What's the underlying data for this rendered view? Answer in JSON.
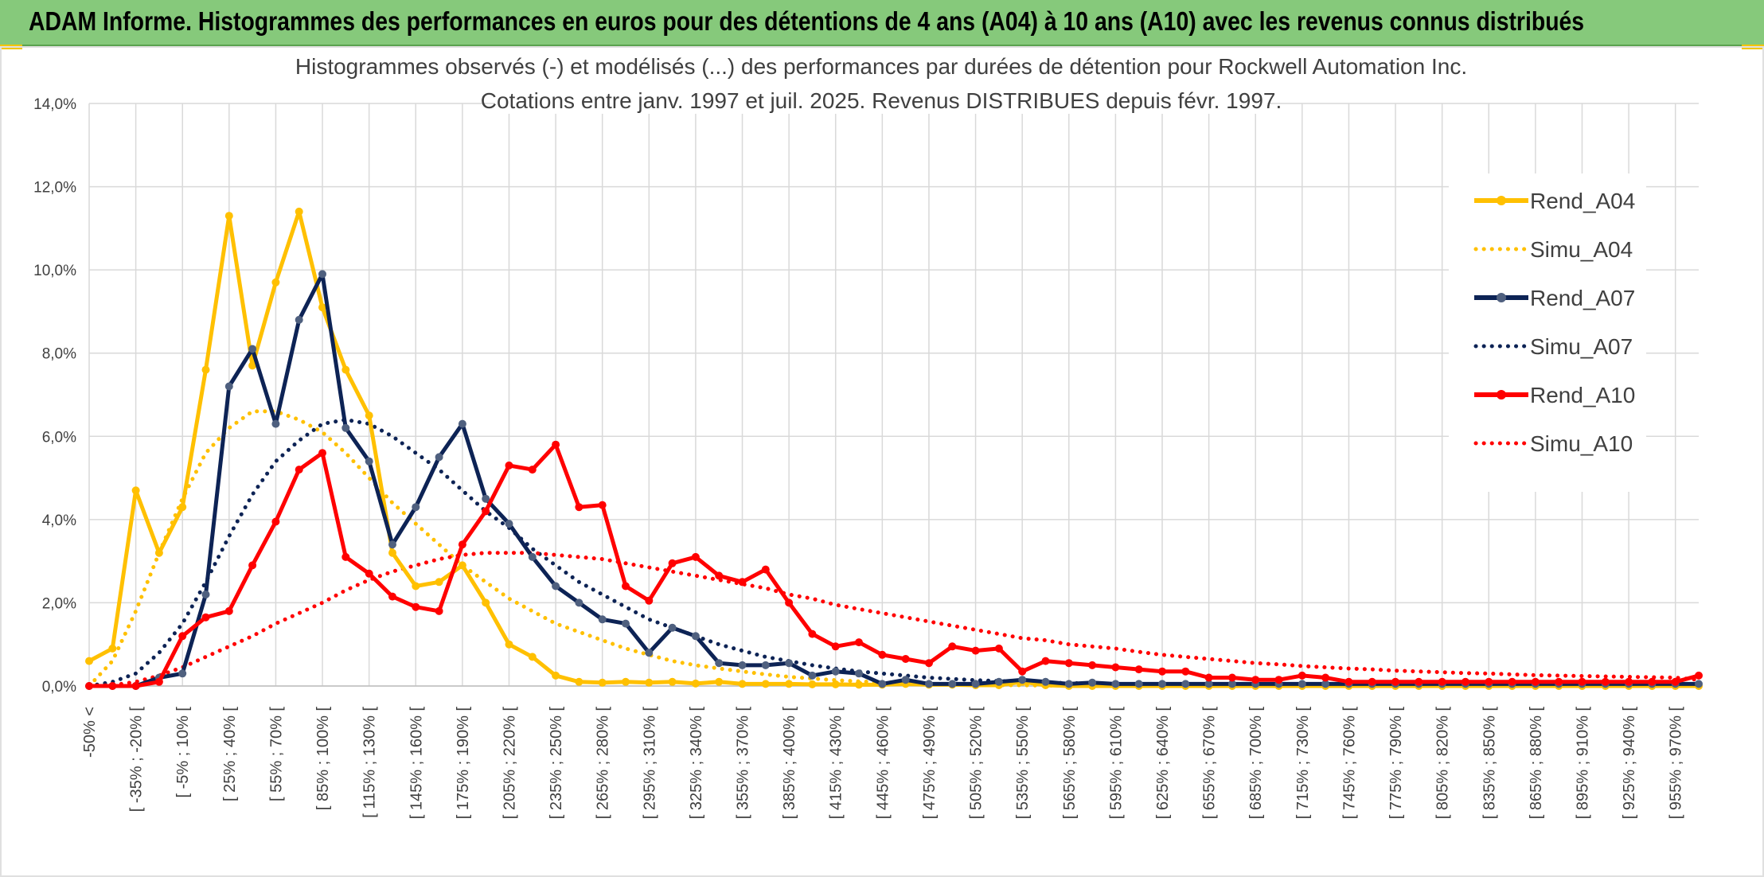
{
  "header": {
    "title": "ADAM Informe. Histogrammes des performances en euros pour des détentions de 4 ans (A04) à 10 ans (A10) avec les revenus connus distribués"
  },
  "colors": {
    "header_bg": "#86c97b",
    "a04": "#ffc000",
    "a07": "#0d2355",
    "a07_marker": "#4f607f",
    "a10": "#ff0000",
    "grid": "#d9d9d9"
  },
  "chart_data": {
    "type": "line",
    "title": "Histogrammes observés (-) et modélisés (...) des performances par durées de détention pour Rockwell Automation Inc.",
    "subtitle": "Cotations entre janv. 1997 et juil. 2025. Revenus DISTRIBUES depuis févr. 1997.",
    "ylim": [
      0,
      14
    ],
    "yticks": [
      "0,0%",
      "2,0%",
      "4,0%",
      "6,0%",
      "8,0%",
      "10,0%",
      "12,0%",
      "14,0%"
    ],
    "grid": true,
    "legend_position": "right",
    "xtick_labels": [
      "-50% <",
      "[ -35% ; -20% [",
      "[ -5% ; 10% [",
      "[ 25% ; 40% [",
      "[ 55% ; 70% [",
      "[ 85% ; 100% [",
      "[ 115% ; 130% [",
      "[ 145% ; 160% [",
      "[ 175% ; 190% [",
      "[ 205% ; 220% [",
      "[ 235% ; 250% [",
      "[ 265% ; 280% [",
      "[ 295% ; 310% [",
      "[ 325% ; 340% [",
      "[ 355% ; 370% [",
      "[ 385% ; 400% [",
      "[ 415% ; 430% [",
      "[ 445% ; 460% [",
      "[ 475% ; 490% [",
      "[ 505% ; 520% [",
      "[ 535% ; 550% [",
      "[ 565% ; 580% [",
      "[ 595% ; 610% [",
      "[ 625% ; 640% [",
      "[ 655% ; 670% [",
      "[ 685% ; 700% [",
      "[ 715% ; 730% [",
      "[ 745% ; 760% [",
      "[ 775% ; 790% [",
      "[ 805% ; 820% [",
      "[ 835% ; 850% [",
      "[ 865% ; 880% [",
      "[ 895% ; 910% [",
      "[ 925% ; 940% [",
      "[ 955% ; 970% ["
    ],
    "series": [
      {
        "name": "Rend_A04",
        "style": "solid",
        "color": "#ffc000",
        "values": [
          0.6,
          0.9,
          4.7,
          3.2,
          4.3,
          7.6,
          11.3,
          7.7,
          9.7,
          11.4,
          9.1,
          7.6,
          6.5,
          3.2,
          2.4,
          2.5,
          2.9,
          2.0,
          1.0,
          0.7,
          0.25,
          0.1,
          0.08,
          0.1,
          0.08,
          0.1,
          0.06,
          0.1,
          0.05,
          0.05,
          0.05,
          0.04,
          0.04,
          0.03,
          0.03,
          0.05,
          0.03,
          0.03,
          0.02,
          0.02,
          0.1,
          0.02,
          0,
          0,
          0,
          0,
          0,
          0,
          0,
          0,
          0,
          0,
          0,
          0,
          0,
          0,
          0,
          0,
          0,
          0,
          0,
          0,
          0,
          0,
          0,
          0,
          0,
          0,
          0,
          0
        ]
      },
      {
        "name": "Simu_A04",
        "style": "dotted",
        "color": "#ffc000",
        "values": [
          0,
          0.6,
          1.8,
          3.2,
          4.5,
          5.6,
          6.2,
          6.6,
          6.6,
          6.4,
          6.1,
          5.6,
          5.0,
          4.4,
          3.9,
          3.4,
          2.9,
          2.5,
          2.1,
          1.8,
          1.5,
          1.3,
          1.1,
          0.9,
          0.75,
          0.6,
          0.5,
          0.42,
          0.35,
          0.28,
          0.22,
          0.18,
          0.14,
          0.11,
          0.09,
          0.07,
          0.05,
          0.04,
          0.03,
          0.02,
          0.02,
          0.01,
          0.01,
          0.01,
          0,
          0,
          0,
          0,
          0,
          0,
          0,
          0,
          0,
          0,
          0,
          0,
          0,
          0,
          0,
          0,
          0,
          0,
          0,
          0,
          0,
          0,
          0,
          0,
          0,
          0
        ]
      },
      {
        "name": "Rend_A07",
        "style": "solid",
        "color": "#0d2355",
        "values": [
          0,
          0,
          0,
          0.2,
          0.3,
          2.2,
          7.2,
          8.1,
          6.3,
          8.8,
          9.9,
          6.2,
          5.4,
          3.4,
          4.3,
          5.5,
          6.3,
          4.5,
          3.9,
          3.1,
          2.4,
          2.0,
          1.6,
          1.5,
          0.8,
          1.4,
          1.2,
          0.55,
          0.5,
          0.5,
          0.55,
          0.25,
          0.35,
          0.3,
          0.05,
          0.15,
          0.05,
          0.05,
          0.05,
          0.1,
          0.15,
          0.1,
          0.05,
          0.08,
          0.05,
          0.05,
          0.05,
          0.05,
          0.05,
          0.05,
          0.05,
          0.05,
          0.05,
          0.05,
          0.05,
          0.05,
          0.05,
          0.05,
          0.05,
          0.05,
          0.05,
          0.05,
          0.05,
          0.05,
          0.05,
          0.05,
          0.05,
          0.05,
          0.05,
          0.05
        ]
      },
      {
        "name": "Simu_A07",
        "style": "dotted",
        "color": "#0d2355",
        "values": [
          0,
          0.1,
          0.3,
          0.8,
          1.5,
          2.5,
          3.6,
          4.6,
          5.4,
          5.9,
          6.3,
          6.4,
          6.3,
          6.0,
          5.6,
          5.2,
          4.7,
          4.2,
          3.8,
          3.3,
          2.9,
          2.5,
          2.2,
          1.9,
          1.6,
          1.4,
          1.2,
          1.0,
          0.85,
          0.7,
          0.6,
          0.5,
          0.42,
          0.35,
          0.3,
          0.25,
          0.2,
          0.17,
          0.14,
          0.12,
          0.1,
          0.08,
          0.07,
          0.06,
          0.05,
          0.04,
          0.03,
          0.03,
          0.02,
          0.02,
          0.02,
          0.01,
          0.01,
          0.01,
          0.01,
          0.01,
          0,
          0,
          0,
          0,
          0,
          0,
          0,
          0,
          0,
          0,
          0,
          0,
          0,
          0
        ]
      },
      {
        "name": "Rend_A10",
        "style": "solid",
        "color": "#ff0000",
        "values": [
          0,
          0,
          0,
          0.1,
          1.2,
          1.65,
          1.8,
          2.9,
          3.95,
          5.2,
          5.6,
          3.1,
          2.7,
          2.15,
          1.9,
          1.8,
          3.4,
          4.2,
          5.3,
          5.2,
          5.8,
          4.3,
          4.35,
          2.4,
          2.05,
          2.95,
          3.1,
          2.65,
          2.5,
          2.8,
          2.0,
          1.25,
          0.95,
          1.05,
          0.75,
          0.65,
          0.55,
          0.95,
          0.85,
          0.9,
          0.35,
          0.6,
          0.55,
          0.5,
          0.45,
          0.4,
          0.35,
          0.35,
          0.2,
          0.2,
          0.15,
          0.15,
          0.25,
          0.2,
          0.1,
          0.1,
          0.1,
          0.1,
          0.1,
          0.1,
          0.1,
          0.1,
          0.1,
          0.1,
          0.1,
          0.1,
          0.1,
          0.1,
          0.1,
          0.25
        ]
      },
      {
        "name": "Simu_A10",
        "style": "dotted",
        "color": "#ff0000",
        "values": [
          0,
          0.02,
          0.1,
          0.25,
          0.45,
          0.7,
          0.95,
          1.2,
          1.5,
          1.75,
          2.0,
          2.3,
          2.55,
          2.75,
          2.9,
          3.05,
          3.15,
          3.2,
          3.2,
          3.2,
          3.15,
          3.1,
          3.05,
          2.95,
          2.85,
          2.75,
          2.65,
          2.55,
          2.45,
          2.35,
          2.2,
          2.1,
          1.95,
          1.85,
          1.75,
          1.65,
          1.55,
          1.45,
          1.35,
          1.25,
          1.15,
          1.1,
          1.0,
          0.95,
          0.9,
          0.82,
          0.75,
          0.7,
          0.65,
          0.6,
          0.55,
          0.52,
          0.48,
          0.45,
          0.42,
          0.4,
          0.37,
          0.35,
          0.33,
          0.31,
          0.3,
          0.28,
          0.26,
          0.25,
          0.24,
          0.23,
          0.22,
          0.21,
          0.2,
          0.15
        ]
      }
    ]
  }
}
